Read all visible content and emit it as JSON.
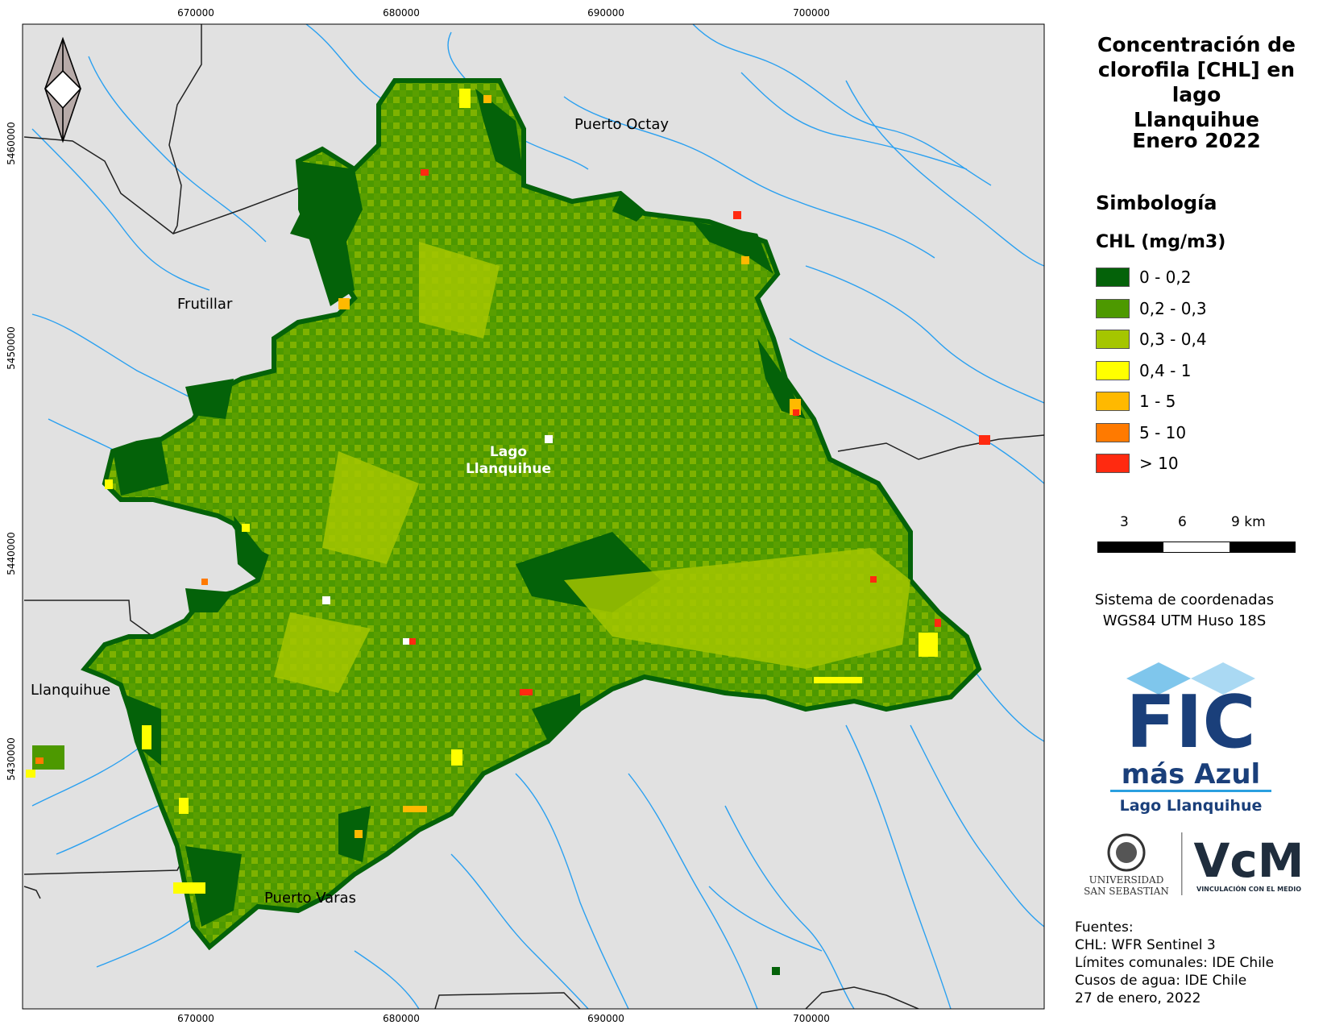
{
  "map": {
    "places": {
      "puerto_octay": "Puerto Octay",
      "frutillar": "Frutillar",
      "llanquihue": "Llanquihue",
      "puerto_varas": "Puerto Varas",
      "lake": [
        "Lago",
        "Llanquihue"
      ]
    },
    "x_ticks": [
      "670000",
      "680000",
      "690000",
      "700000"
    ],
    "y_ticks": [
      "5460000",
      "5450000",
      "5440000",
      "5430000"
    ],
    "colors": {
      "land": "#e1e1e1",
      "rivers": "#2aa0f0",
      "boundaries": "#222222",
      "north_arrow": "#b7aaa8"
    }
  },
  "title": {
    "lines": [
      "Concentración de",
      "clorofila [CHL] en lago",
      "Llanquihue"
    ],
    "date": "Enero 2022"
  },
  "legend": {
    "title": "Simbología",
    "subtitle": "CHL (mg/m3)",
    "items": [
      {
        "label": "0 - 0,2",
        "color": "#046209"
      },
      {
        "label": "0,2 - 0,3",
        "color": "#4d9900"
      },
      {
        "label": "0,3 - 0,4",
        "color": "#a5c600"
      },
      {
        "label": "0,4 - 1",
        "color": "#ffff00"
      },
      {
        "label": "1 - 5",
        "color": "#ffb900"
      },
      {
        "label": "5 - 10",
        "color": "#ff7a00"
      },
      {
        "label": "> 10",
        "color": "#ff2a10"
      }
    ]
  },
  "scale": {
    "labels": [
      "3",
      "6",
      "9 km"
    ]
  },
  "crs": {
    "line1": "Sistema de coordenadas",
    "line2": "WGS84 UTM Huso 18S"
  },
  "logos": {
    "fic": {
      "line1": "FIC",
      "line2": "más Azul",
      "line3": "Lago Llanquihue",
      "color": "#1a3f7a",
      "accent": "#2aa0e0"
    },
    "uss": {
      "line1": "UNIVERSIDAD",
      "line2": "SAN SEBASTIAN"
    },
    "vcm": {
      "mark": "VcM",
      "caption": "VINCULACIÓN CON EL MEDIO",
      "color": "#1f2d3d"
    }
  },
  "sources": {
    "heading": "Fuentes:",
    "lines": [
      "CHL: WFR Sentinel 3",
      "Límites comunales: IDE Chile",
      "Cusos de agua: IDE Chile",
      "27 de enero, 2022"
    ]
  }
}
